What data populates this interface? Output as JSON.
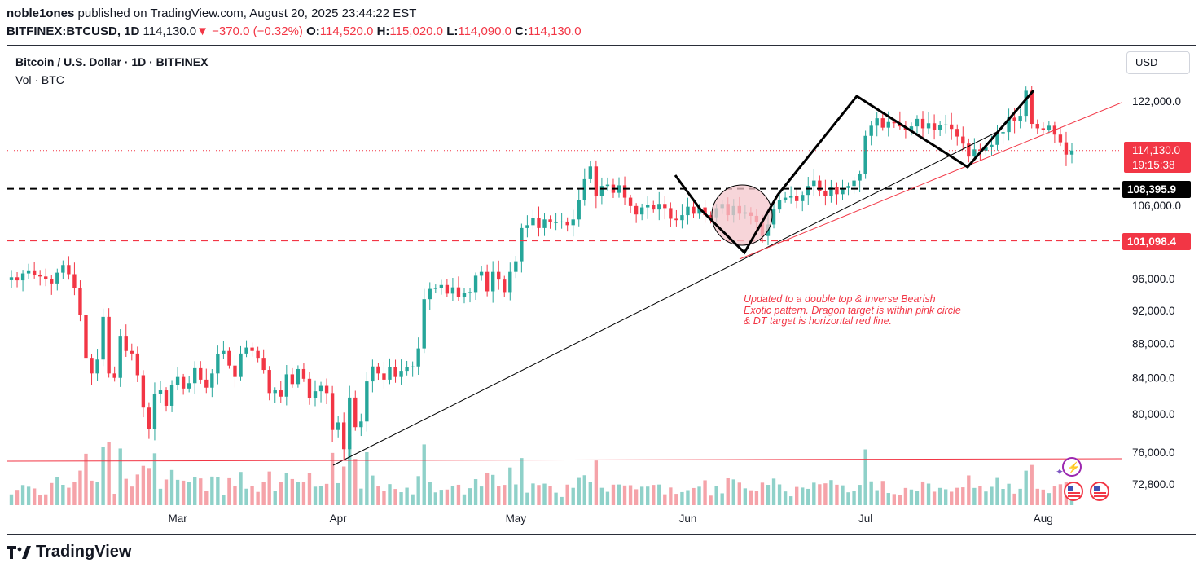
{
  "header": {
    "author": "noble1ones",
    "published": "published on TradingView.com, August 20, 2025 23:44:22 EST",
    "symbol": "BITFINEX:BTCUSD, 1D",
    "last": "114,130.0",
    "change": "−370.0 (−0.32%)",
    "o_label": "O:",
    "o_value": "114,520.0",
    "h_label": "H:",
    "h_value": "115,020.0",
    "l_label": "L:",
    "l_value": "114,090.0",
    "c_label": "C:",
    "c_value": "114,130.0"
  },
  "legend": {
    "title": "Bitcoin / U.S. Dollar · 1D · BITFINEX",
    "volume": "Vol · BTC"
  },
  "currency_button": "USD",
  "footer_logo": "TradingView",
  "colors": {
    "up": "#26a69a",
    "down": "#f23645",
    "up_vol": "#8fd1c9",
    "down_vol": "#f5a3a9",
    "pink_circle": "#f4c7cc"
  },
  "annotation": {
    "line1": "Updated to a double top & Inverse  Bearish",
    "line2": "Exotic pattern. Dragon target is within pink circle",
    "line3": "& DT target is horizontal red line."
  },
  "price_labels": {
    "last": "114,130.0",
    "countdown": "19:15:38",
    "black_level": "108,395.9",
    "red_level": "101,098.4"
  },
  "chart_data": {
    "type": "candlestick",
    "title": "Bitcoin / U.S. Dollar · 1D · BITFINEX",
    "ylabel": "",
    "ylim": [
      70000,
      126000
    ],
    "y_scale": "log",
    "y_ticks": [
      "122,000.0",
      "106,000.0",
      "96,000.0",
      "92,000.0",
      "88,000.0",
      "84,000.0",
      "80,000.0",
      "76,000.0",
      "72,800.0"
    ],
    "y_tick_values": [
      122000,
      106000,
      96000,
      92000,
      88000,
      84000,
      80000,
      76000,
      72800
    ],
    "x_ticks": [
      "Mar",
      "Apr",
      "May",
      "Jun",
      "Jul",
      "Aug"
    ],
    "horizontal_levels": [
      {
        "value": 108395.9,
        "style": "dashed",
        "color": "#000000"
      },
      {
        "value": 101098.4,
        "style": "dashed",
        "color": "#f23645"
      },
      {
        "value": 114130.0,
        "style": "dotted",
        "color": "#f23645"
      }
    ],
    "close_path": [
      96200,
      95800,
      96700,
      97100,
      96500,
      96300,
      96000,
      95400,
      96800,
      97800,
      96600,
      94800,
      91400,
      86300,
      84500,
      86100,
      91200,
      84500,
      84000,
      88900,
      87100,
      86800,
      84300,
      80700,
      78400,
      82200,
      82600,
      80900,
      83200,
      84100,
      82800,
      83400,
      85100,
      83800,
      82900,
      84500,
      86700,
      87100,
      85400,
      84100,
      86800,
      87500,
      87100,
      86300,
      84900,
      82300,
      82600,
      81900,
      84400,
      83300,
      85000,
      83900,
      81700,
      82500,
      83100,
      82300,
      78300,
      79100,
      76300,
      81800,
      78600,
      79200,
      83600,
      85300,
      84500,
      83800,
      85200,
      84100,
      84800,
      85200,
      85300,
      87400,
      93400,
      94700,
      94800,
      95200,
      94100,
      94900,
      93700,
      94200,
      94300,
      96400,
      96900,
      94400,
      96900,
      95900,
      94300,
      96900,
      98300,
      102800,
      103200,
      104200,
      102800,
      104000,
      103600,
      103600,
      103700,
      103200,
      104000,
      106800,
      109800,
      111700,
      107300,
      108800,
      109000,
      107800,
      108900,
      107100,
      105900,
      104700,
      105700,
      106000,
      105400,
      106200,
      105600,
      104100,
      103900,
      104600,
      105800,
      104800,
      105700,
      104600,
      104300,
      105600,
      106200,
      104600,
      105900,
      104800,
      105000,
      104500,
      103600,
      101700,
      103300,
      105400,
      106800,
      107100,
      107400,
      106600,
      107500,
      108800,
      109600,
      108100,
      107300,
      108700,
      107600,
      108500,
      108800,
      109600,
      110600,
      116400,
      118000,
      119200,
      117700,
      118600,
      118400,
      117900,
      117300,
      117900,
      119100,
      117600,
      118400,
      117300,
      118100,
      118200,
      117500,
      116300,
      115200,
      113200,
      114300,
      114100,
      114600,
      115000,
      116800,
      117000,
      119300,
      118700,
      119600,
      123700,
      118300,
      117600,
      117400,
      118000,
      116600,
      115400,
      113500,
      114130
    ]
  }
}
